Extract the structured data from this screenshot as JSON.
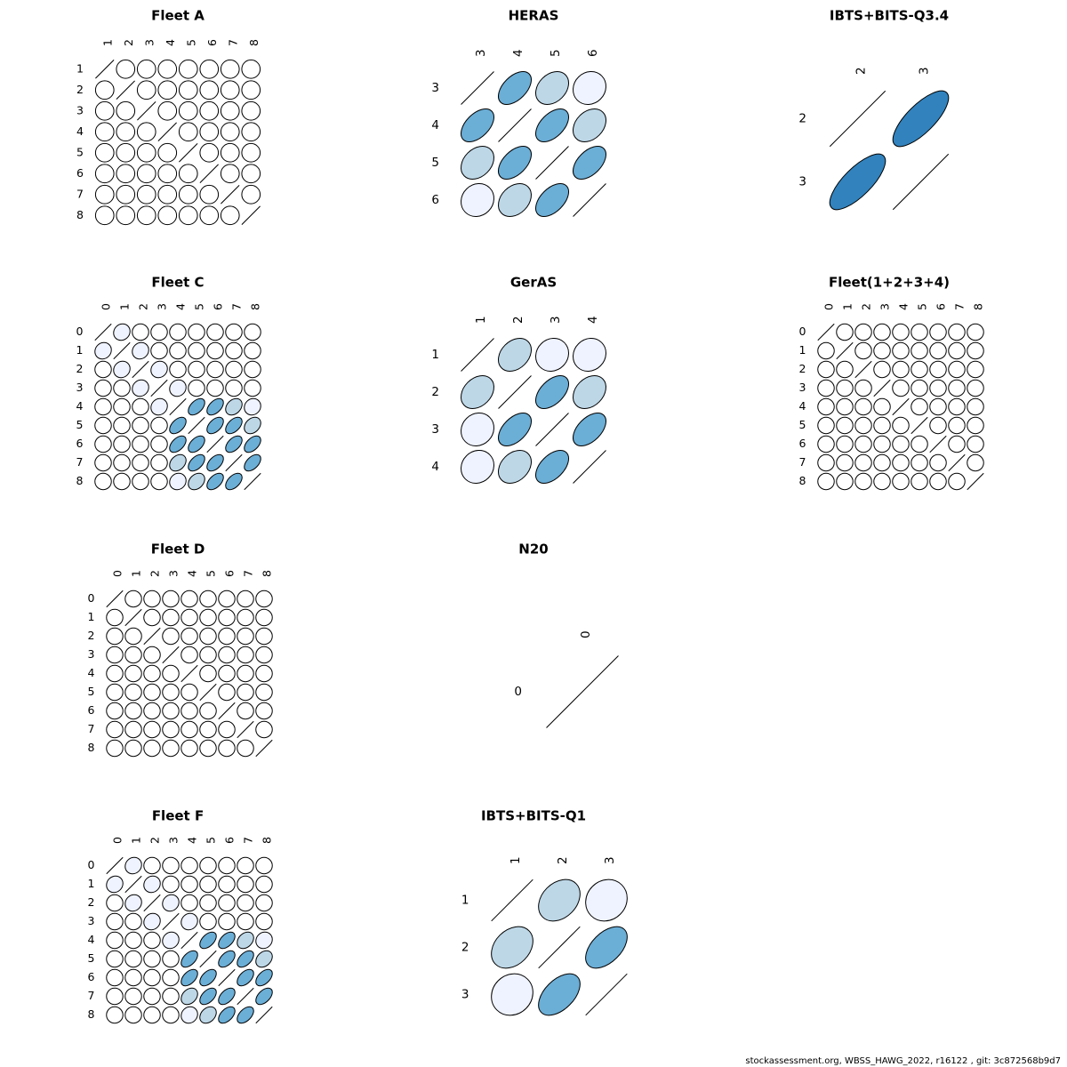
{
  "footer": "stockassessment.org, WBSS_HAWG_2022, r16122 , git: 3c872568b9d7",
  "colors": {
    "neutral": "#ffffff",
    "very_light": "#eff3ff",
    "light": "#bdd7e7",
    "medium": "#6baed6",
    "strong": "#3182bd",
    "outline": "#000000"
  },
  "chart_data": [
    {
      "type": "correlation_matrix",
      "title": "Fleet A",
      "ages": [
        "1",
        "2",
        "3",
        "4",
        "5",
        "6",
        "7",
        "8"
      ],
      "corr": []
    },
    {
      "type": "correlation_matrix",
      "title": "HERAS",
      "ages": [
        "3",
        "4",
        "5",
        "6"
      ],
      "corr": [
        [
          1,
          0.5,
          0.3,
          0.1
        ],
        [
          0.5,
          1,
          0.5,
          0.3
        ],
        [
          0.3,
          0.5,
          1,
          0.5
        ],
        [
          0.1,
          0.3,
          0.5,
          1
        ]
      ]
    },
    {
      "type": "correlation_matrix",
      "title": "IBTS+BITS-Q3.4",
      "ages": [
        "2",
        "3"
      ],
      "corr": [
        [
          1,
          0.75
        ],
        [
          0.75,
          1
        ]
      ]
    },
    {
      "type": "correlation_matrix",
      "title": "Fleet C",
      "ages": [
        "0",
        "1",
        "2",
        "3",
        "4",
        "5",
        "6",
        "7",
        "8"
      ],
      "corr": [
        [
          1,
          0.1,
          0,
          0,
          0,
          0,
          0,
          0,
          0
        ],
        [
          0.1,
          1,
          0.1,
          0,
          0,
          0,
          0,
          0,
          0
        ],
        [
          0,
          0.1,
          1,
          0.1,
          0,
          0,
          0,
          0,
          0
        ],
        [
          0,
          0,
          0.1,
          1,
          0.1,
          0,
          0,
          0,
          0
        ],
        [
          0,
          0,
          0,
          0.1,
          1,
          0.5,
          0.5,
          0.3,
          0.1
        ],
        [
          0,
          0,
          0,
          0,
          0.5,
          1,
          0.5,
          0.5,
          0.3
        ],
        [
          0,
          0,
          0,
          0,
          0.5,
          0.5,
          1,
          0.5,
          0.5
        ],
        [
          0,
          0,
          0,
          0,
          0.3,
          0.5,
          0.5,
          1,
          0.5
        ],
        [
          0,
          0,
          0,
          0,
          0.1,
          0.3,
          0.5,
          0.5,
          1
        ]
      ]
    },
    {
      "type": "correlation_matrix",
      "title": "GerAS",
      "ages": [
        "1",
        "2",
        "3",
        "4"
      ],
      "corr": [
        [
          1,
          0.3,
          0.1,
          0.1
        ],
        [
          0.3,
          1,
          0.5,
          0.3
        ],
        [
          0.1,
          0.5,
          1,
          0.5
        ],
        [
          0.1,
          0.3,
          0.5,
          1
        ]
      ]
    },
    {
      "type": "correlation_matrix",
      "title": "Fleet(1+2+3+4)",
      "ages": [
        "0",
        "1",
        "2",
        "3",
        "4",
        "5",
        "6",
        "7",
        "8"
      ],
      "corr": []
    },
    {
      "type": "correlation_matrix",
      "title": "Fleet D",
      "ages": [
        "0",
        "1",
        "2",
        "3",
        "4",
        "5",
        "6",
        "7",
        "8"
      ],
      "corr": []
    },
    {
      "type": "correlation_matrix",
      "title": "N20",
      "ages": [
        "0"
      ],
      "corr": [
        [
          1
        ]
      ]
    },
    {
      "type": "correlation_matrix",
      "title": "Fleet F",
      "ages": [
        "0",
        "1",
        "2",
        "3",
        "4",
        "5",
        "6",
        "7",
        "8"
      ],
      "corr": [
        [
          1,
          0.1,
          0,
          0,
          0,
          0,
          0,
          0,
          0
        ],
        [
          0.1,
          1,
          0.1,
          0,
          0,
          0,
          0,
          0,
          0
        ],
        [
          0,
          0.1,
          1,
          0.1,
          0,
          0,
          0,
          0,
          0
        ],
        [
          0,
          0,
          0.1,
          1,
          0.1,
          0,
          0,
          0,
          0
        ],
        [
          0,
          0,
          0,
          0.1,
          1,
          0.5,
          0.5,
          0.3,
          0.1
        ],
        [
          0,
          0,
          0,
          0,
          0.5,
          1,
          0.5,
          0.5,
          0.3
        ],
        [
          0,
          0,
          0,
          0,
          0.5,
          0.5,
          1,
          0.5,
          0.5
        ],
        [
          0,
          0,
          0,
          0,
          0.3,
          0.5,
          0.5,
          1,
          0.5
        ],
        [
          0,
          0,
          0,
          0,
          0.1,
          0.3,
          0.5,
          0.5,
          1
        ]
      ]
    },
    {
      "type": "correlation_matrix",
      "title": "IBTS+BITS-Q1",
      "ages": [
        "1",
        "2",
        "3"
      ],
      "corr": [
        [
          1,
          0.3,
          0.1
        ],
        [
          0.3,
          1,
          0.5
        ],
        [
          0.1,
          0.5,
          1
        ]
      ]
    }
  ]
}
